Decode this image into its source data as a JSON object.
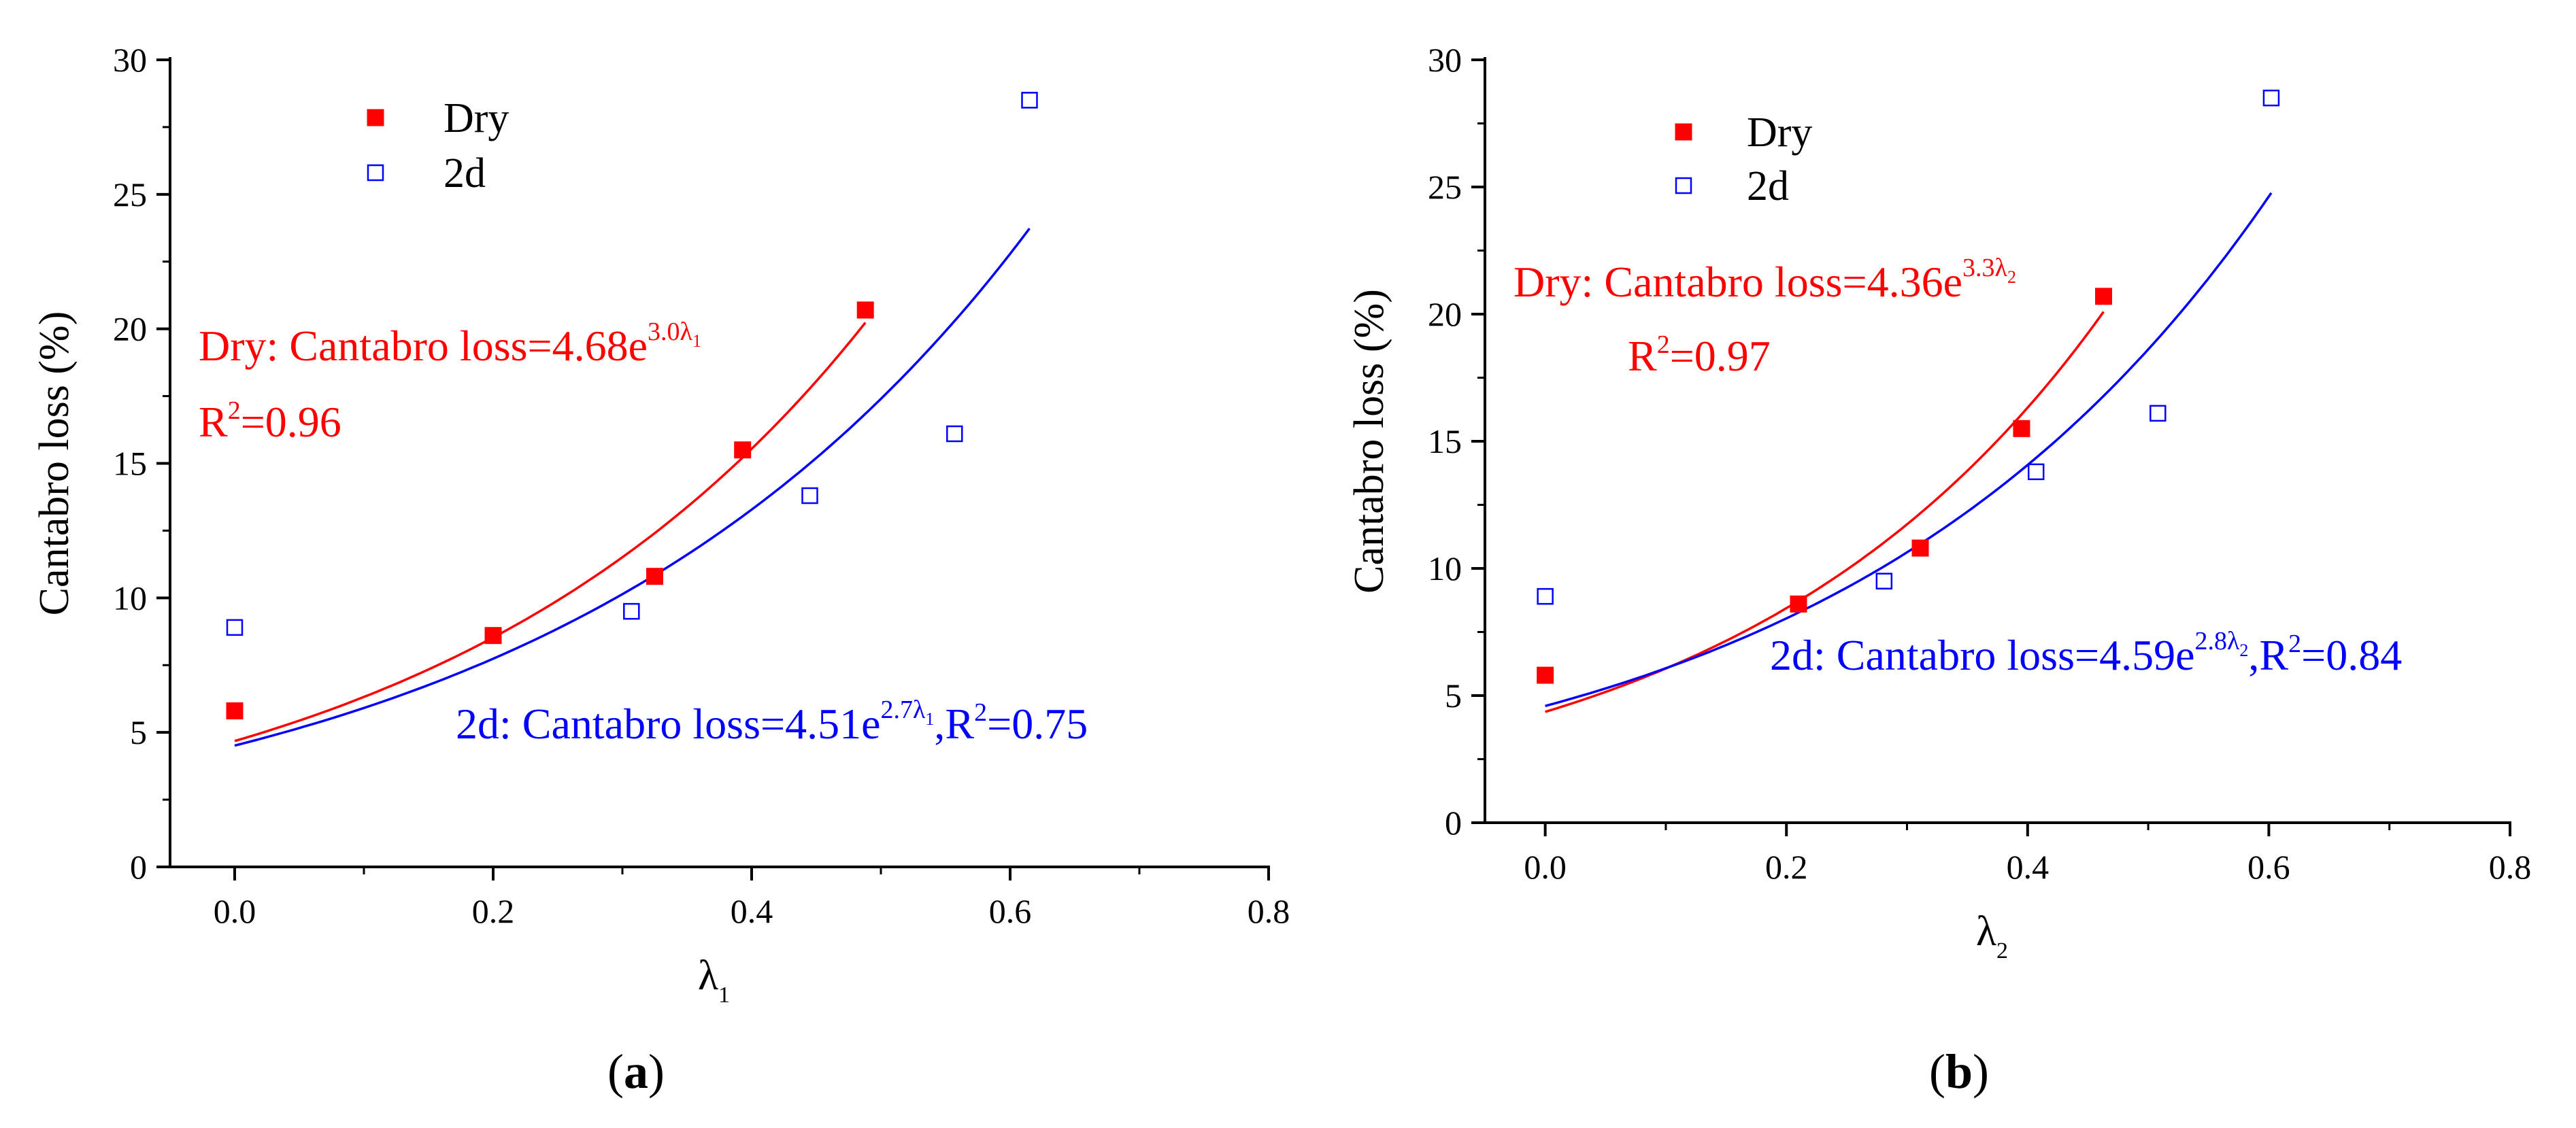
{
  "chart_data": [
    {
      "type": "scatter",
      "panel_label": "a",
      "xlabel": "λ",
      "xlabel_sub": "1",
      "ylabel": "Cantabro loss (%)",
      "xlim": [
        -0.05,
        0.8
      ],
      "ylim": [
        0,
        30
      ],
      "x_ticks": [
        "0.0",
        "0.2",
        "0.4",
        "0.6",
        "0.8"
      ],
      "y_ticks": [
        "0",
        "5",
        "10",
        "15",
        "20",
        "25",
        "30"
      ],
      "legend": {
        "position": "top-left",
        "entries": [
          "Dry",
          "2d"
        ]
      },
      "series": [
        {
          "name": "Dry",
          "marker": "filled-square",
          "color": "#ff0000",
          "points": [
            [
              0.0,
              5.8
            ],
            [
              0.2,
              8.6
            ],
            [
              0.325,
              10.8
            ],
            [
              0.393,
              15.5
            ],
            [
              0.488,
              20.7
            ]
          ],
          "fit": {
            "a": 4.68,
            "b": 3.0,
            "x_range": [
              0.0,
              0.488
            ]
          }
        },
        {
          "name": "2d",
          "marker": "hollow-square",
          "color": "#0000ff",
          "points": [
            [
              0.0,
              8.9
            ],
            [
              0.307,
              9.5
            ],
            [
              0.445,
              13.8
            ],
            [
              0.557,
              16.1
            ],
            [
              0.615,
              28.5
            ]
          ],
          "fit": {
            "a": 4.51,
            "b": 2.7,
            "x_range": [
              0.0,
              0.615
            ]
          }
        }
      ],
      "annotations": {
        "dry_eq": {
          "prefix": "Dry: Cantabro loss=4.68e",
          "exp": "3.0λ",
          "exp_sub": "1"
        },
        "dry_r2": {
          "prefix": "R",
          "sup": "2",
          "suffix": "=0.96"
        },
        "wet_eq": {
          "prefix": "2d: Cantabro loss=4.51e",
          "exp": "2.7λ",
          "exp_sub": "1",
          "mid": ",R",
          "sup": "2",
          "suffix": "=0.75"
        }
      }
    },
    {
      "type": "scatter",
      "panel_label": "b",
      "xlabel": "λ",
      "xlabel_sub": "2",
      "ylabel": "Cantabro loss (%)",
      "xlim": [
        -0.05,
        0.8
      ],
      "ylim": [
        0,
        30
      ],
      "x_ticks": [
        "0.0",
        "0.2",
        "0.4",
        "0.6",
        "0.8"
      ],
      "y_ticks": [
        "0",
        "5",
        "10",
        "15",
        "20",
        "25",
        "30"
      ],
      "legend": {
        "position": "top-left",
        "entries": [
          "Dry",
          "2d"
        ]
      },
      "series": [
        {
          "name": "Dry",
          "marker": "filled-square",
          "color": "#ff0000",
          "points": [
            [
              0.0,
              5.8
            ],
            [
              0.21,
              8.6
            ],
            [
              0.311,
              10.8
            ],
            [
              0.395,
              15.5
            ],
            [
              0.463,
              20.7
            ]
          ],
          "fit": {
            "a": 4.36,
            "b": 3.3,
            "x_range": [
              0.0,
              0.463
            ]
          }
        },
        {
          "name": "2d",
          "marker": "hollow-square",
          "color": "#0000ff",
          "points": [
            [
              0.0,
              8.9
            ],
            [
              0.281,
              9.5
            ],
            [
              0.407,
              13.8
            ],
            [
              0.508,
              16.1
            ],
            [
              0.602,
              28.5
            ]
          ],
          "fit": {
            "a": 4.59,
            "b": 2.8,
            "x_range": [
              0.0,
              0.602
            ]
          }
        }
      ],
      "annotations": {
        "dry_eq": {
          "prefix": "Dry: Cantabro loss=4.36e",
          "exp": "3.3λ",
          "exp_sub": "2"
        },
        "dry_r2": {
          "prefix": "R",
          "sup": "2",
          "suffix": "=0.97"
        },
        "wet_eq": {
          "prefix": "2d: Cantabro loss=4.59e",
          "exp": "2.8λ",
          "exp_sub": "2",
          "mid": ",R",
          "sup": "2",
          "suffix": "=0.84"
        }
      }
    }
  ]
}
